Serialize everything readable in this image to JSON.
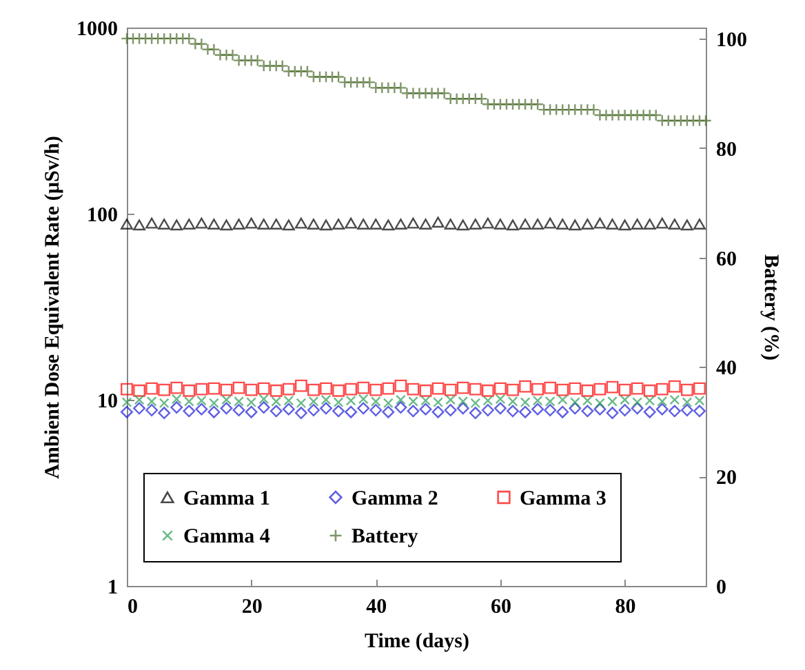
{
  "chart_data": {
    "type": "scatter",
    "xlabel": "Time (days)",
    "ylabel": "Ambient Dose Equivalent Rate (µSv/h)",
    "y2label": "Battery (%)",
    "x": [
      0,
      2,
      4,
      6,
      8,
      10,
      12,
      14,
      16,
      18,
      20,
      22,
      24,
      26,
      28,
      30,
      32,
      34,
      36,
      38,
      40,
      42,
      44,
      46,
      48,
      50,
      52,
      54,
      56,
      58,
      60,
      62,
      64,
      66,
      68,
      70,
      72,
      74,
      76,
      78,
      80,
      82,
      84,
      86,
      88,
      90,
      92
    ],
    "series": [
      {
        "name": "Gamma 1",
        "color": "#000000",
        "marker": "triangle",
        "values": [
          88,
          87,
          89,
          88,
          87,
          88,
          89,
          88,
          87,
          88,
          89,
          88,
          88,
          87,
          89,
          88,
          87,
          88,
          89,
          88,
          88,
          87,
          88,
          89,
          88,
          90,
          88,
          87,
          88,
          89,
          88,
          87,
          88,
          88,
          89,
          88,
          87,
          88,
          89,
          88,
          87,
          88,
          88,
          89,
          88,
          87,
          88
        ]
      },
      {
        "name": "Gamma 2",
        "color": "#1c1cd9",
        "marker": "diamond",
        "values": [
          8.6,
          9.0,
          8.8,
          8.5,
          9.1,
          8.7,
          8.9,
          8.6,
          9.0,
          8.8,
          8.6,
          9.1,
          8.7,
          8.9,
          8.5,
          8.8,
          9.0,
          8.7,
          8.6,
          9.0,
          8.8,
          8.6,
          9.1,
          8.7,
          8.9,
          8.6,
          8.8,
          9.0,
          8.5,
          8.8,
          9.0,
          8.7,
          8.6,
          8.9,
          8.8,
          8.6,
          9.0,
          8.7,
          8.9,
          8.5,
          8.8,
          9.0,
          8.6,
          8.9,
          8.7,
          8.8,
          8.7
        ]
      },
      {
        "name": "Gamma 3",
        "color": "#ff0000",
        "marker": "square",
        "values": [
          11.4,
          11.2,
          11.5,
          11.3,
          11.6,
          11.2,
          11.4,
          11.5,
          11.3,
          11.6,
          11.3,
          11.5,
          11.2,
          11.4,
          11.9,
          11.3,
          11.5,
          11.2,
          11.4,
          11.6,
          11.3,
          11.5,
          11.9,
          11.4,
          11.2,
          11.5,
          11.3,
          11.6,
          11.4,
          11.2,
          11.5,
          11.3,
          11.8,
          11.4,
          11.6,
          11.3,
          11.5,
          11.2,
          11.4,
          11.7,
          11.3,
          11.5,
          11.2,
          11.4,
          11.8,
          11.3,
          11.5
        ]
      },
      {
        "name": "Gamma 4",
        "color": "#2a9d55",
        "marker": "cross",
        "values": [
          9.7,
          10.0,
          9.8,
          9.6,
          10.1,
          9.8,
          9.9,
          9.6,
          10.0,
          9.8,
          9.7,
          10.1,
          9.8,
          9.9,
          9.6,
          9.8,
          10.0,
          9.7,
          9.9,
          10.1,
          9.8,
          9.6,
          10.0,
          9.8,
          9.9,
          9.7,
          10.0,
          9.8,
          9.6,
          9.9,
          10.1,
          9.8,
          9.7,
          9.9,
          9.8,
          10.0,
          9.7,
          9.9,
          9.6,
          9.8,
          10.0,
          9.7,
          9.9,
          9.8,
          10.0,
          9.7,
          9.9
        ]
      },
      {
        "name": "Battery",
        "color": "#4a6b2a",
        "marker": "plus",
        "axis": "y2",
        "x": [
          0,
          1,
          2,
          3,
          4,
          5,
          6,
          7,
          8,
          9,
          10,
          11,
          12,
          13,
          14,
          15,
          16,
          17,
          18,
          19,
          20,
          21,
          22,
          23,
          24,
          25,
          26,
          27,
          28,
          29,
          30,
          31,
          32,
          33,
          34,
          35,
          36,
          37,
          38,
          39,
          40,
          41,
          42,
          43,
          44,
          45,
          46,
          47,
          48,
          49,
          50,
          51,
          52,
          53,
          54,
          55,
          56,
          57,
          58,
          59,
          60,
          61,
          62,
          63,
          64,
          65,
          66,
          67,
          68,
          69,
          70,
          71,
          72,
          73,
          74,
          75,
          76,
          77,
          78,
          79,
          80,
          81,
          82,
          83,
          84,
          85,
          86,
          87,
          88,
          89,
          90,
          91,
          92,
          93
        ],
        "values": [
          100,
          100,
          100,
          100,
          100,
          100,
          100,
          100,
          100,
          100,
          100,
          99,
          99,
          98,
          98,
          97,
          97,
          97,
          96,
          96,
          96,
          96,
          95,
          95,
          95,
          95,
          94,
          94,
          94,
          94,
          93,
          93,
          93,
          93,
          93,
          92,
          92,
          92,
          92,
          92,
          91,
          91,
          91,
          91,
          91,
          90,
          90,
          90,
          90,
          90,
          90,
          90,
          89,
          89,
          89,
          89,
          89,
          89,
          88,
          88,
          88,
          88,
          88,
          88,
          88,
          88,
          88,
          87,
          87,
          87,
          87,
          87,
          87,
          87,
          87,
          87,
          86,
          86,
          86,
          86,
          86,
          86,
          86,
          86,
          86,
          86,
          85,
          85,
          85,
          85,
          85,
          85,
          85,
          85
        ]
      }
    ],
    "xlim": [
      0,
      93
    ],
    "xticks": [
      0,
      20,
      40,
      60,
      80
    ],
    "ylim": [
      1,
      1000
    ],
    "yticks": [
      1,
      10,
      100,
      1000
    ],
    "log": "y",
    "y2lim": [
      0,
      102
    ],
    "y2ticks": [
      0,
      20,
      40,
      60,
      80,
      100
    ],
    "grid": false,
    "legend": "bottom"
  }
}
